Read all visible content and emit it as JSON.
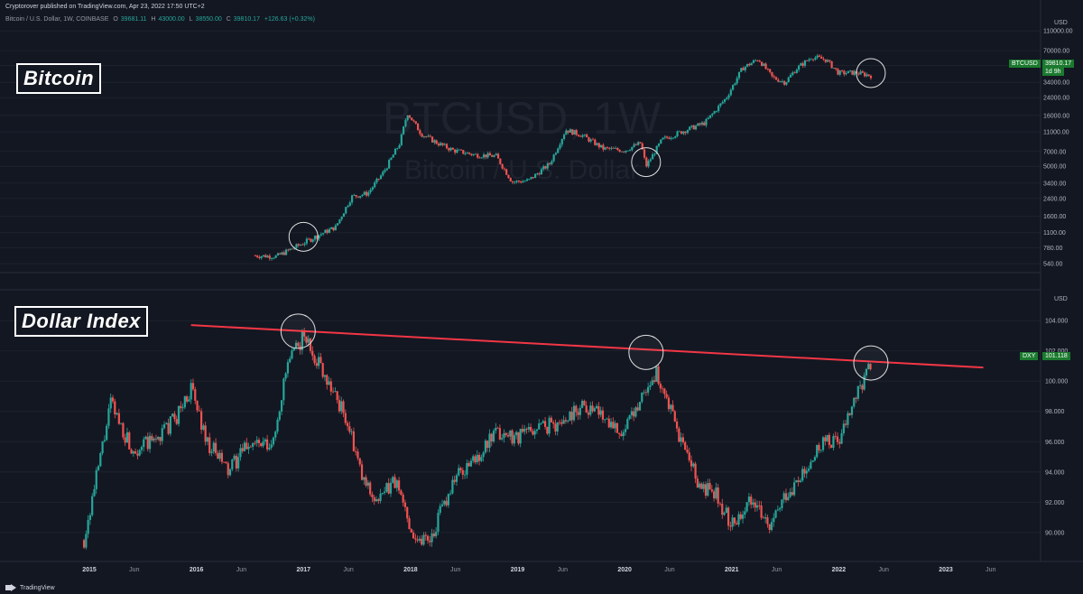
{
  "header": {
    "published": "Cryptorover published on TradingView.com, Apr 23, 2022 17:50 UTC+2"
  },
  "ohlc": {
    "symbol": "Bitcoin / U.S. Dollar, 1W, COINBASE",
    "o_label": "O",
    "o": "39681.11",
    "h_label": "H",
    "h": "43000.00",
    "l_label": "L",
    "l": "38550.00",
    "c_label": "C",
    "c": "39810.17",
    "change": "+126.63 (+0.32%)"
  },
  "watermark": {
    "title": "BTCUSD, 1W",
    "subtitle": "Bitcoin / U.S. Dollar"
  },
  "labels": {
    "top": "Bitcoin",
    "bottom": "Dollar Index"
  },
  "price_tags": {
    "btc_symbol": "BTCUSD",
    "btc_price": "39810.17",
    "btc_countdown": "1d 9h",
    "dxy_symbol": "DXY",
    "dxy_price": "101.118"
  },
  "footer": {
    "brand": "TradingView"
  },
  "colors": {
    "background": "#131722",
    "up": "#26a69a",
    "down": "#ef5350",
    "trendline": "#f23645",
    "circle": "#e0e0e0",
    "grid": "#1e222d",
    "tag_green": "#1b7a2e"
  },
  "chart_data": [
    {
      "type": "candlestick",
      "title": "BTCUSD, 1W",
      "subtitle": "Bitcoin / U.S. Dollar",
      "scale": "log",
      "y_unit": "USD",
      "y_ticks": [
        540,
        780,
        1100,
        1600,
        2400,
        3400,
        5000,
        7000,
        11000,
        16000,
        24000,
        34000,
        50000,
        70000,
        110000
      ],
      "ylim": [
        460,
        120000
      ],
      "last_price": 39810.17,
      "series": [
        {
          "name": "BTCUSD",
          "x": [
            2016.55,
            2016.75,
            2017.0,
            2017.15,
            2017.3,
            2017.45,
            2017.6,
            2017.75,
            2017.9,
            2017.97,
            2018.1,
            2018.25,
            2018.4,
            2018.6,
            2018.8,
            2018.95,
            2019.1,
            2019.3,
            2019.45,
            2019.6,
            2019.8,
            2020.0,
            2020.15,
            2020.2,
            2020.35,
            2020.55,
            2020.75,
            2020.95,
            2021.1,
            2021.25,
            2021.38,
            2021.5,
            2021.6,
            2021.75,
            2021.88,
            2022.0,
            2022.15,
            2022.3
          ],
          "values": [
            650,
            640,
            870,
            1050,
            1250,
            2500,
            2700,
            4400,
            8500,
            17000,
            10500,
            8500,
            7200,
            6500,
            6300,
            3500,
            3600,
            5300,
            11500,
            10200,
            7500,
            7200,
            8500,
            5000,
            9200,
            11200,
            13500,
            24000,
            47000,
            58000,
            38000,
            34000,
            46000,
            61000,
            57000,
            42000,
            42500,
            39810
          ]
        }
      ],
      "annotations": [
        {
          "type": "circle",
          "x": 2017.0,
          "y": 1000
        },
        {
          "type": "circle",
          "x": 2020.2,
          "y": 5500
        },
        {
          "type": "circle",
          "x": 2022.3,
          "y": 42000
        }
      ]
    },
    {
      "type": "candlestick",
      "title": "",
      "y_unit": "USD",
      "y_ticks": [
        90.0,
        92.0,
        94.0,
        96.0,
        98.0,
        100.0,
        102.0,
        104.0
      ],
      "ylim": [
        88.5,
        105.5
      ],
      "last_price": 101.118,
      "series": [
        {
          "name": "DXY",
          "x": [
            2014.95,
            2015.05,
            2015.2,
            2015.4,
            2015.6,
            2015.8,
            2015.95,
            2016.1,
            2016.3,
            2016.5,
            2016.7,
            2016.85,
            2017.0,
            2017.2,
            2017.4,
            2017.55,
            2017.7,
            2017.85,
            2018.05,
            2018.2,
            2018.4,
            2018.6,
            2018.8,
            2019.0,
            2019.2,
            2019.4,
            2019.6,
            2019.8,
            2020.0,
            2020.15,
            2020.3,
            2020.5,
            2020.7,
            2020.85,
            2021.0,
            2021.2,
            2021.35,
            2021.5,
            2021.7,
            2021.85,
            2022.0,
            2022.15,
            2022.3
          ],
          "values": [
            89.5,
            93.0,
            98.5,
            95.5,
            96.0,
            97.5,
            99.5,
            96.0,
            94.0,
            96.0,
            95.5,
            101.0,
            103.0,
            100.5,
            97.5,
            93.5,
            92.0,
            93.5,
            89.5,
            89.8,
            93.5,
            94.8,
            96.5,
            96.4,
            97.0,
            97.2,
            98.5,
            97.8,
            96.5,
            99.0,
            100.5,
            96.5,
            93.0,
            92.5,
            90.5,
            92.5,
            90.0,
            92.5,
            94.0,
            96.0,
            96.0,
            98.8,
            101.1
          ]
        }
      ],
      "trendline": {
        "x1": 2015.95,
        "y1": 103.7,
        "x2": 2023.35,
        "y2": 100.9
      },
      "annotations": [
        {
          "type": "circle",
          "x": 2016.95,
          "y": 103.3
        },
        {
          "type": "circle",
          "x": 2020.2,
          "y": 101.9
        },
        {
          "type": "circle",
          "x": 2022.3,
          "y": 101.2
        }
      ]
    }
  ],
  "x_axis": {
    "labels": [
      "2015",
      "Jun",
      "2016",
      "Jun",
      "2017",
      "Jun",
      "2018",
      "Jun",
      "2019",
      "Jun",
      "2020",
      "Jun",
      "2021",
      "Jun",
      "2022",
      "Jun",
      "2023",
      "Jun"
    ],
    "positions": [
      2015.0,
      2015.42,
      2016.0,
      2016.42,
      2017.0,
      2017.42,
      2018.0,
      2018.42,
      2019.0,
      2019.42,
      2020.0,
      2020.42,
      2021.0,
      2021.42,
      2022.0,
      2022.42,
      2023.0,
      2023.42
    ],
    "bold": [
      true,
      false,
      true,
      false,
      true,
      false,
      true,
      false,
      true,
      false,
      true,
      false,
      true,
      false,
      true,
      false,
      true,
      false
    ]
  }
}
